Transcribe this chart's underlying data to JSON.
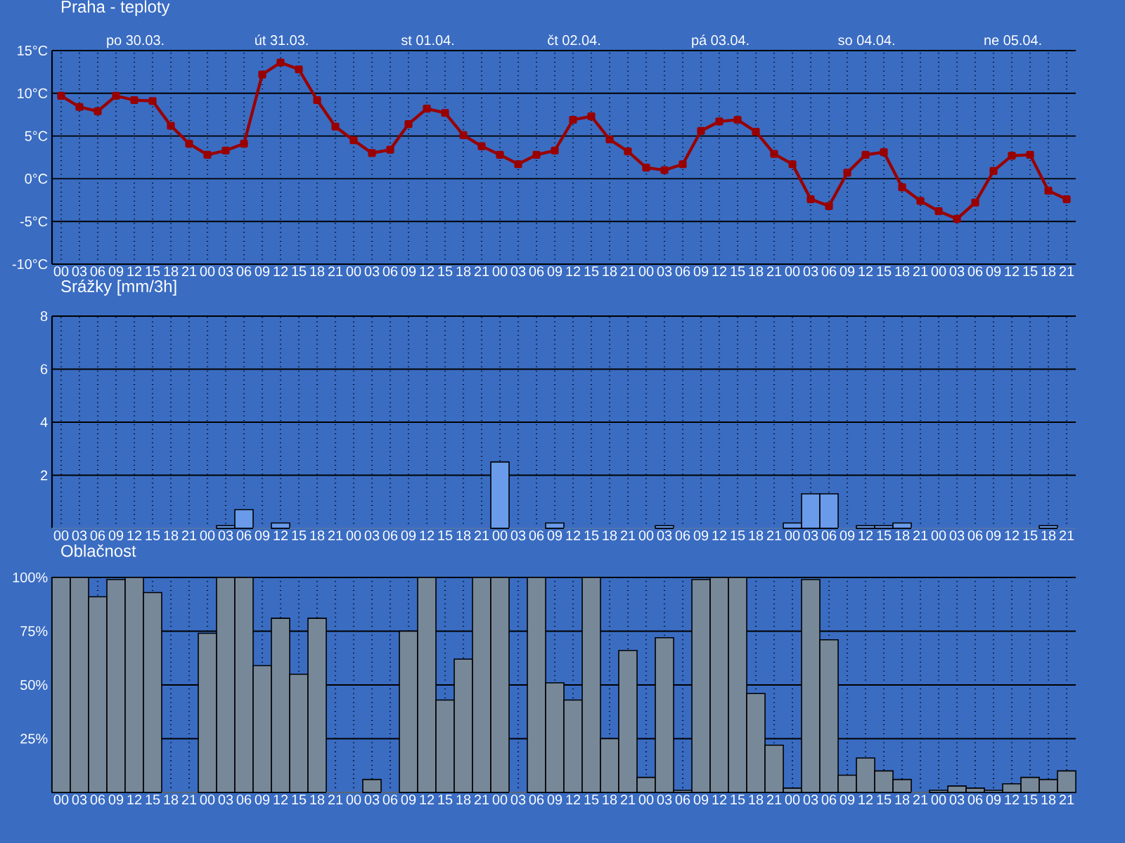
{
  "chart_data": [
    {
      "type": "line",
      "title": "Praha - teploty",
      "color": "#990000",
      "marker": "square",
      "grid": true,
      "categories": [
        "00",
        "03",
        "06",
        "09",
        "12",
        "15",
        "18",
        "21",
        "00",
        "03",
        "06",
        "09",
        "12",
        "15",
        "18",
        "21",
        "00",
        "03",
        "06",
        "09",
        "12",
        "15",
        "18",
        "21",
        "00",
        "03",
        "06",
        "09",
        "12",
        "15",
        "18",
        "21",
        "00",
        "03",
        "06",
        "09",
        "12",
        "15",
        "18",
        "21",
        "00",
        "03",
        "06",
        "09",
        "12",
        "15",
        "18",
        "21",
        "00",
        "03",
        "06",
        "09",
        "12",
        "15",
        "18",
        "21"
      ],
      "values": [
        9.7,
        8.4,
        7.9,
        9.7,
        9.2,
        9.1,
        6.2,
        4.1,
        2.8,
        3.3,
        4.1,
        12.2,
        13.6,
        12.8,
        9.2,
        6.1,
        4.5,
        3.0,
        3.4,
        6.4,
        8.2,
        7.7,
        5.1,
        3.8,
        2.8,
        1.7,
        2.8,
        3.3,
        6.9,
        7.3,
        4.6,
        3.2,
        1.3,
        1.0,
        1.7,
        5.6,
        6.7,
        6.9,
        5.5,
        2.9,
        1.7,
        -2.4,
        -3.2,
        0.7,
        2.8,
        3.1,
        -1.0,
        -2.6,
        -3.8,
        -4.7,
        -2.8,
        0.9,
        2.7,
        2.8,
        -1.4,
        -2.4
      ],
      "ylim": [
        -10,
        15
      ],
      "yticks": [
        {
          "value": -10,
          "label": "-10°C"
        },
        {
          "value": -5,
          "label": "-5°C"
        },
        {
          "value": 0,
          "label": "0°C"
        },
        {
          "value": 5,
          "label": "5°C"
        },
        {
          "value": 10,
          "label": "10°C"
        },
        {
          "value": 15,
          "label": "15°C"
        }
      ],
      "annotations": [
        "po 30.03.",
        "út 31.03.",
        "st 01.04.",
        "čt 02.04.",
        "pá 03.04.",
        "so 04.04.",
        "ne 05.04."
      ]
    },
    {
      "type": "bar",
      "title": "Srážky [mm/3h]",
      "color": "#6a9bea",
      "grid": true,
      "categories": [
        "00",
        "03",
        "06",
        "09",
        "12",
        "15",
        "18",
        "21",
        "00",
        "03",
        "06",
        "09",
        "12",
        "15",
        "18",
        "21",
        "00",
        "03",
        "06",
        "09",
        "12",
        "15",
        "18",
        "21",
        "00",
        "03",
        "06",
        "09",
        "12",
        "15",
        "18",
        "21",
        "00",
        "03",
        "06",
        "09",
        "12",
        "15",
        "18",
        "21",
        "00",
        "03",
        "06",
        "09",
        "12",
        "15",
        "18",
        "21",
        "00",
        "03",
        "06",
        "09",
        "12",
        "15",
        "18",
        "21"
      ],
      "values": [
        0,
        0,
        0,
        0,
        0,
        0,
        0,
        0,
        0,
        0.1,
        0.7,
        0,
        0.2,
        0,
        0,
        0,
        0,
        0,
        0,
        0,
        0,
        0,
        0,
        0,
        2.5,
        0,
        0,
        0.2,
        0,
        0,
        0,
        0,
        0,
        0.1,
        0,
        0,
        0,
        0,
        0,
        0,
        0.2,
        1.3,
        1.3,
        0,
        0.1,
        0.1,
        0.2,
        0,
        0,
        0,
        0,
        0,
        0,
        0,
        0.1,
        0
      ],
      "ylim": [
        0,
        8
      ],
      "yticks": [
        2,
        4,
        6,
        8
      ]
    },
    {
      "type": "bar",
      "title": "Oblačnost",
      "color": "#778899",
      "grid": true,
      "categories": [
        "00",
        "03",
        "06",
        "09",
        "12",
        "15",
        "18",
        "21",
        "00",
        "03",
        "06",
        "09",
        "12",
        "15",
        "18",
        "21",
        "00",
        "03",
        "06",
        "09",
        "12",
        "15",
        "18",
        "21",
        "00",
        "03",
        "06",
        "09",
        "12",
        "15",
        "18",
        "21",
        "00",
        "03",
        "06",
        "09",
        "12",
        "15",
        "18",
        "21",
        "00",
        "03",
        "06",
        "09",
        "12",
        "15",
        "18",
        "21",
        "00",
        "03",
        "06",
        "09",
        "12",
        "15",
        "18",
        "21"
      ],
      "values": [
        100,
        100,
        91,
        99,
        100,
        93,
        0,
        0,
        74,
        100,
        100,
        59,
        81,
        55,
        81,
        0,
        0,
        6,
        0,
        75,
        100,
        43,
        62,
        100,
        100,
        0,
        100,
        51,
        43,
        100,
        25,
        66,
        7,
        72,
        1,
        99,
        100,
        100,
        46,
        22,
        2,
        99,
        71,
        8,
        16,
        10,
        6,
        0,
        1,
        3,
        2,
        1,
        4,
        7,
        6,
        10
      ],
      "ylim": [
        0,
        100
      ],
      "yticks": [
        {
          "value": 25,
          "label": "25%"
        },
        {
          "value": 50,
          "label": "50%"
        },
        {
          "value": 75,
          "label": "75%"
        },
        {
          "value": 100,
          "label": "100%"
        }
      ]
    }
  ]
}
